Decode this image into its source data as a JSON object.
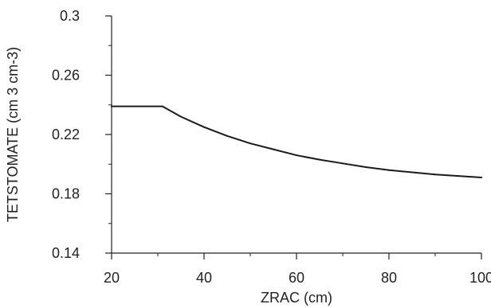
{
  "chart_data": {
    "type": "line",
    "title": "",
    "xlabel": "ZRAC (cm)",
    "ylabel": "TETSTOMATE (cm 3 cm-3)",
    "xlim": [
      20,
      100
    ],
    "ylim": [
      0.14,
      0.3
    ],
    "x_ticks": [
      20,
      40,
      60,
      80,
      100
    ],
    "x_tick_labels": [
      "20",
      "40",
      "60",
      "80",
      "100"
    ],
    "y_ticks": [
      0.14,
      0.18,
      0.22,
      0.26,
      0.3
    ],
    "y_tick_labels": [
      "0.14",
      "0.18",
      "0.22",
      "0.26",
      "0.3"
    ],
    "grid": false,
    "line_color": "#1a1a1a",
    "series": [
      {
        "x": [
          20,
          31,
          35,
          40,
          45,
          50,
          55,
          60,
          65,
          70,
          75,
          80,
          85,
          90,
          95,
          100
        ],
        "y": [
          0.239,
          0.239,
          0.232,
          0.225,
          0.219,
          0.214,
          0.21,
          0.206,
          0.203,
          0.2005,
          0.198,
          0.196,
          0.1945,
          0.193,
          0.192,
          0.191
        ]
      }
    ]
  }
}
